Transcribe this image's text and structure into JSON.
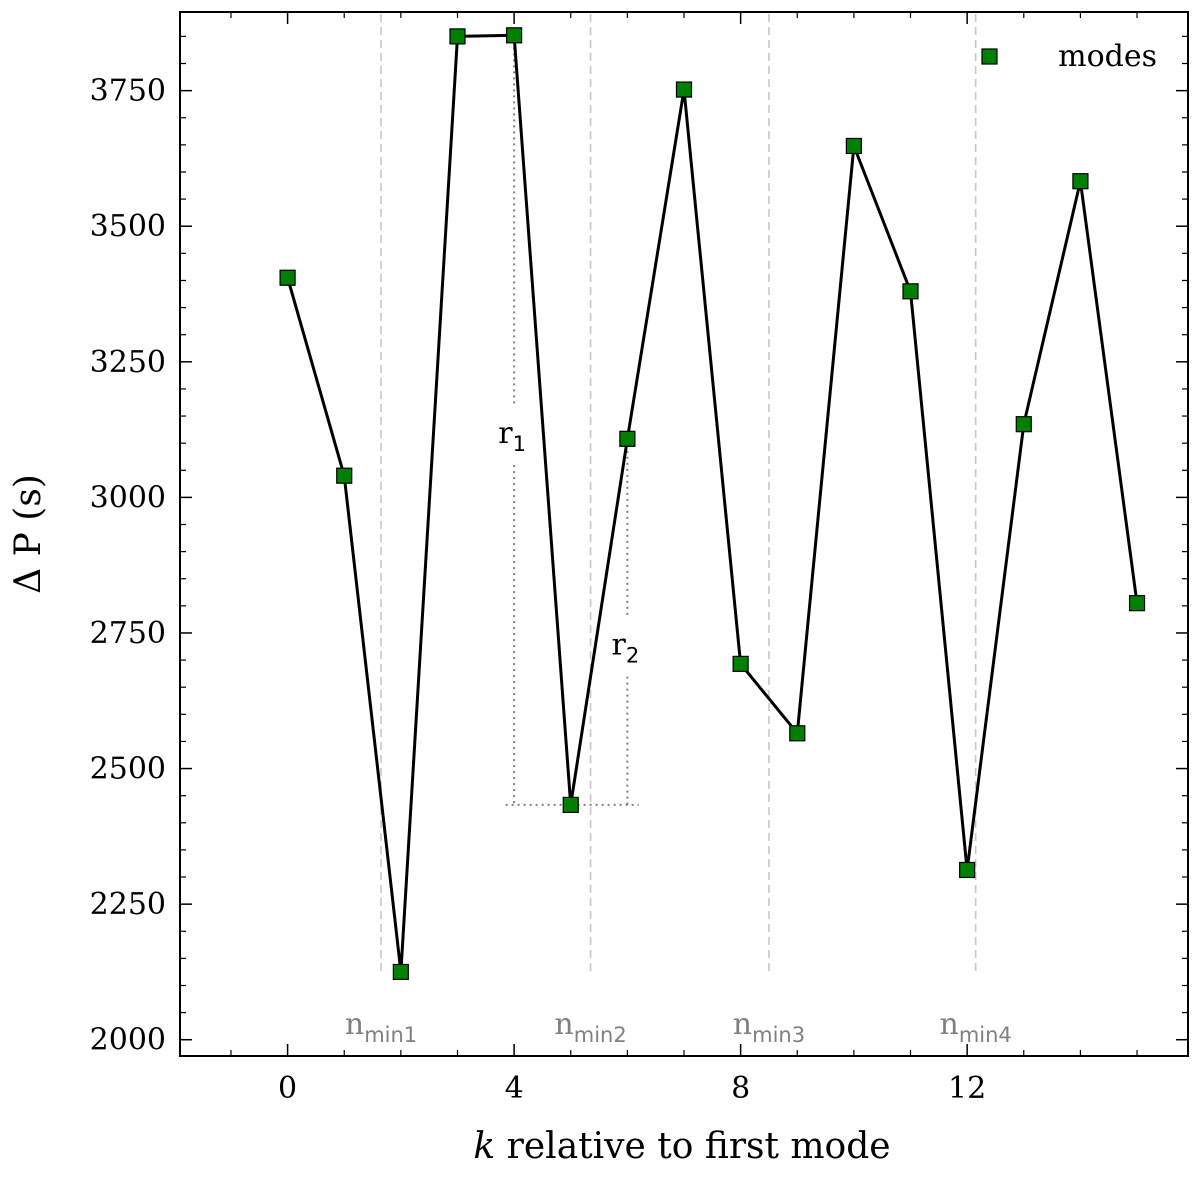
{
  "chart_data": {
    "type": "line",
    "xlabel": "relative to first mode",
    "xlabel_var": "k",
    "ylabel": "Δ P (s)",
    "xlim": [
      -1.9,
      15.9
    ],
    "ylim": [
      1970,
      3895
    ],
    "xticks": [
      0,
      4,
      8,
      12
    ],
    "yticks": [
      2000,
      2250,
      2500,
      2750,
      3000,
      3250,
      3500,
      3750
    ],
    "grid": false,
    "legend_position": "top-right",
    "series": [
      {
        "name": "modes",
        "color": "#008000",
        "marker": "square",
        "x": [
          0,
          1,
          2,
          3,
          4,
          5,
          6,
          7,
          8,
          9,
          10,
          11,
          12,
          13,
          14,
          15
        ],
        "y": [
          3405,
          3040,
          2125,
          3850,
          3852,
          2433,
          3108,
          3752,
          2693,
          2565,
          3648,
          3380,
          2313,
          3135,
          3583,
          2805
        ]
      }
    ],
    "vlines": [
      {
        "x": 1.65,
        "label_base": "n",
        "label_sub": "min1"
      },
      {
        "x": 5.35,
        "label_base": "n",
        "label_sub": "min2"
      },
      {
        "x": 8.5,
        "label_base": "n",
        "label_sub": "min3"
      },
      {
        "x": 12.15,
        "label_base": "n",
        "label_sub": "min4"
      }
    ],
    "annotations": [
      {
        "label_base": "r",
        "label_sub": "1",
        "x": 4,
        "y_top": 3852,
        "y_bottom": 2433
      },
      {
        "label_base": "r",
        "label_sub": "2",
        "x": 6,
        "y_top": 3108,
        "y_bottom": 2433
      }
    ],
    "baseline": {
      "y": 2433,
      "x_from": 3.85,
      "x_to": 6.2
    }
  }
}
